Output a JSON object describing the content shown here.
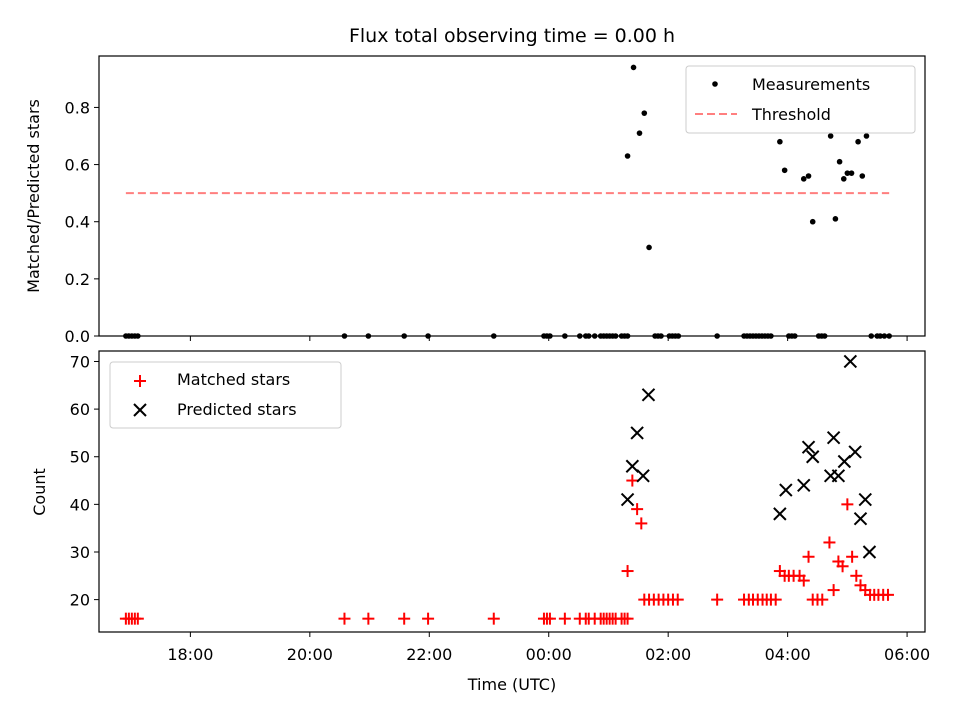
{
  "title": "Flux total observing time = 0.00 h",
  "chart_data": [
    {
      "type": "scatter",
      "ylabel": "Matched/Predicted stars",
      "xlim": [
        16.47,
        30.3
      ],
      "ylim": [
        0,
        0.98
      ],
      "yticks": [
        0.0,
        0.2,
        0.4,
        0.6,
        0.8
      ],
      "ytick_labels": [
        "0.0",
        "0.2",
        "0.4",
        "0.6",
        "0.8"
      ],
      "legend_location": "upper right",
      "series": [
        {
          "name": "Measurements",
          "marker": "dot",
          "color": "#000000",
          "x": [
            16.92,
            16.97,
            17.02,
            17.07,
            17.12,
            20.58,
            20.98,
            21.58,
            21.98,
            23.08,
            23.92,
            23.97,
            24.02,
            24.27,
            24.52,
            24.62,
            24.67,
            24.77,
            24.87,
            24.92,
            24.97,
            25.02,
            25.07,
            25.12,
            25.22,
            25.27,
            25.32,
            25.32,
            25.42,
            25.52,
            25.6,
            25.68,
            25.78,
            25.83,
            25.88,
            26.02,
            26.07,
            26.12,
            26.17,
            26.82,
            27.27,
            27.32,
            27.37,
            27.42,
            27.47,
            27.52,
            27.57,
            27.62,
            27.67,
            27.72,
            27.87,
            27.95,
            28.02,
            28.07,
            28.12,
            28.27,
            28.35,
            28.42,
            28.52,
            28.57,
            28.62,
            28.72,
            28.8,
            28.87,
            28.94,
            29.0,
            29.07,
            29.18,
            29.25,
            29.32,
            29.4,
            29.5,
            29.55,
            29.62,
            29.7
          ],
          "y": [
            0,
            0,
            0,
            0,
            0,
            0,
            0,
            0,
            0,
            0,
            0,
            0,
            0,
            0,
            0,
            0,
            0,
            0,
            0,
            0,
            0,
            0,
            0,
            0,
            0,
            0,
            0,
            0.63,
            0.94,
            0.71,
            0.78,
            0.31,
            0,
            0,
            0,
            0,
            0,
            0,
            0,
            0,
            0,
            0,
            0,
            0,
            0,
            0,
            0,
            0,
            0,
            0,
            0.68,
            0.58,
            0,
            0,
            0,
            0.55,
            0.56,
            0.4,
            0,
            0,
            0,
            0.7,
            0.41,
            0.61,
            0.55,
            0.57,
            0.57,
            0.68,
            0.56,
            0.7,
            0,
            0,
            0,
            0,
            0
          ]
        },
        {
          "name": "Threshold",
          "style": "dashed",
          "color": "#ff7f7f",
          "x": [
            16.92,
            29.7
          ],
          "y": [
            0.5,
            0.5
          ]
        }
      ]
    },
    {
      "type": "scatter",
      "xlabel": "Time (UTC)",
      "ylabel": "Count",
      "xlim": [
        16.47,
        30.3
      ],
      "ylim": [
        13.2,
        72.2
      ],
      "yticks": [
        20,
        30,
        40,
        50,
        60,
        70
      ],
      "ytick_labels": [
        "20",
        "30",
        "40",
        "50",
        "60",
        "70"
      ],
      "xticks": [
        18,
        20,
        22,
        24,
        26,
        28,
        30
      ],
      "xtick_labels": [
        "18:00",
        "20:00",
        "22:00",
        "00:00",
        "02:00",
        "04:00",
        "06:00"
      ],
      "legend_location": "upper left",
      "series": [
        {
          "name": "Matched stars",
          "marker": "plus",
          "color": "#ff0000",
          "x": [
            16.92,
            16.97,
            17.02,
            17.07,
            17.12,
            20.58,
            20.98,
            21.58,
            21.98,
            23.08,
            23.92,
            23.97,
            24.02,
            24.27,
            24.52,
            24.62,
            24.67,
            24.77,
            24.87,
            24.92,
            24.97,
            25.02,
            25.07,
            25.12,
            25.22,
            25.27,
            25.32,
            25.32,
            25.4,
            25.48,
            25.55,
            25.6,
            25.68,
            25.76,
            25.84,
            25.92,
            26.0,
            26.08,
            26.16,
            26.82,
            27.27,
            27.35,
            27.42,
            27.5,
            27.58,
            27.65,
            27.72,
            27.8,
            27.87,
            27.95,
            28.02,
            28.1,
            28.2,
            28.27,
            28.35,
            28.42,
            28.5,
            28.58,
            28.7,
            28.77,
            28.85,
            28.92,
            29.0,
            29.08,
            29.15,
            29.22,
            29.3,
            29.38,
            29.45,
            29.52,
            29.6,
            29.68
          ],
          "y": [
            16,
            16,
            16,
            16,
            16,
            16,
            16,
            16,
            16,
            16,
            16,
            16,
            16,
            16,
            16,
            16,
            16,
            16,
            16,
            16,
            16,
            16,
            16,
            16,
            16,
            16,
            16,
            26,
            45,
            39,
            36,
            20,
            20,
            20,
            20,
            20,
            20,
            20,
            20,
            20,
            20,
            20,
            20,
            20,
            20,
            20,
            20,
            20,
            26,
            25,
            25,
            25,
            25,
            24,
            29,
            20,
            20,
            20,
            32,
            22,
            28,
            27,
            40,
            29,
            25,
            23,
            22,
            21,
            21,
            21,
            21,
            21
          ]
        },
        {
          "name": "Predicted stars",
          "marker": "x",
          "color": "#000000",
          "x": [
            25.32,
            25.4,
            25.48,
            25.58,
            25.67,
            27.87,
            27.97,
            28.27,
            28.35,
            28.42,
            28.72,
            28.77,
            28.85,
            28.95,
            29.05,
            29.13,
            29.22,
            29.3,
            29.37
          ],
          "y": [
            41,
            48,
            55,
            46,
            63,
            38,
            43,
            44,
            52,
            50,
            46,
            54,
            46,
            49,
            70,
            51,
            37,
            41,
            30
          ]
        }
      ]
    }
  ]
}
